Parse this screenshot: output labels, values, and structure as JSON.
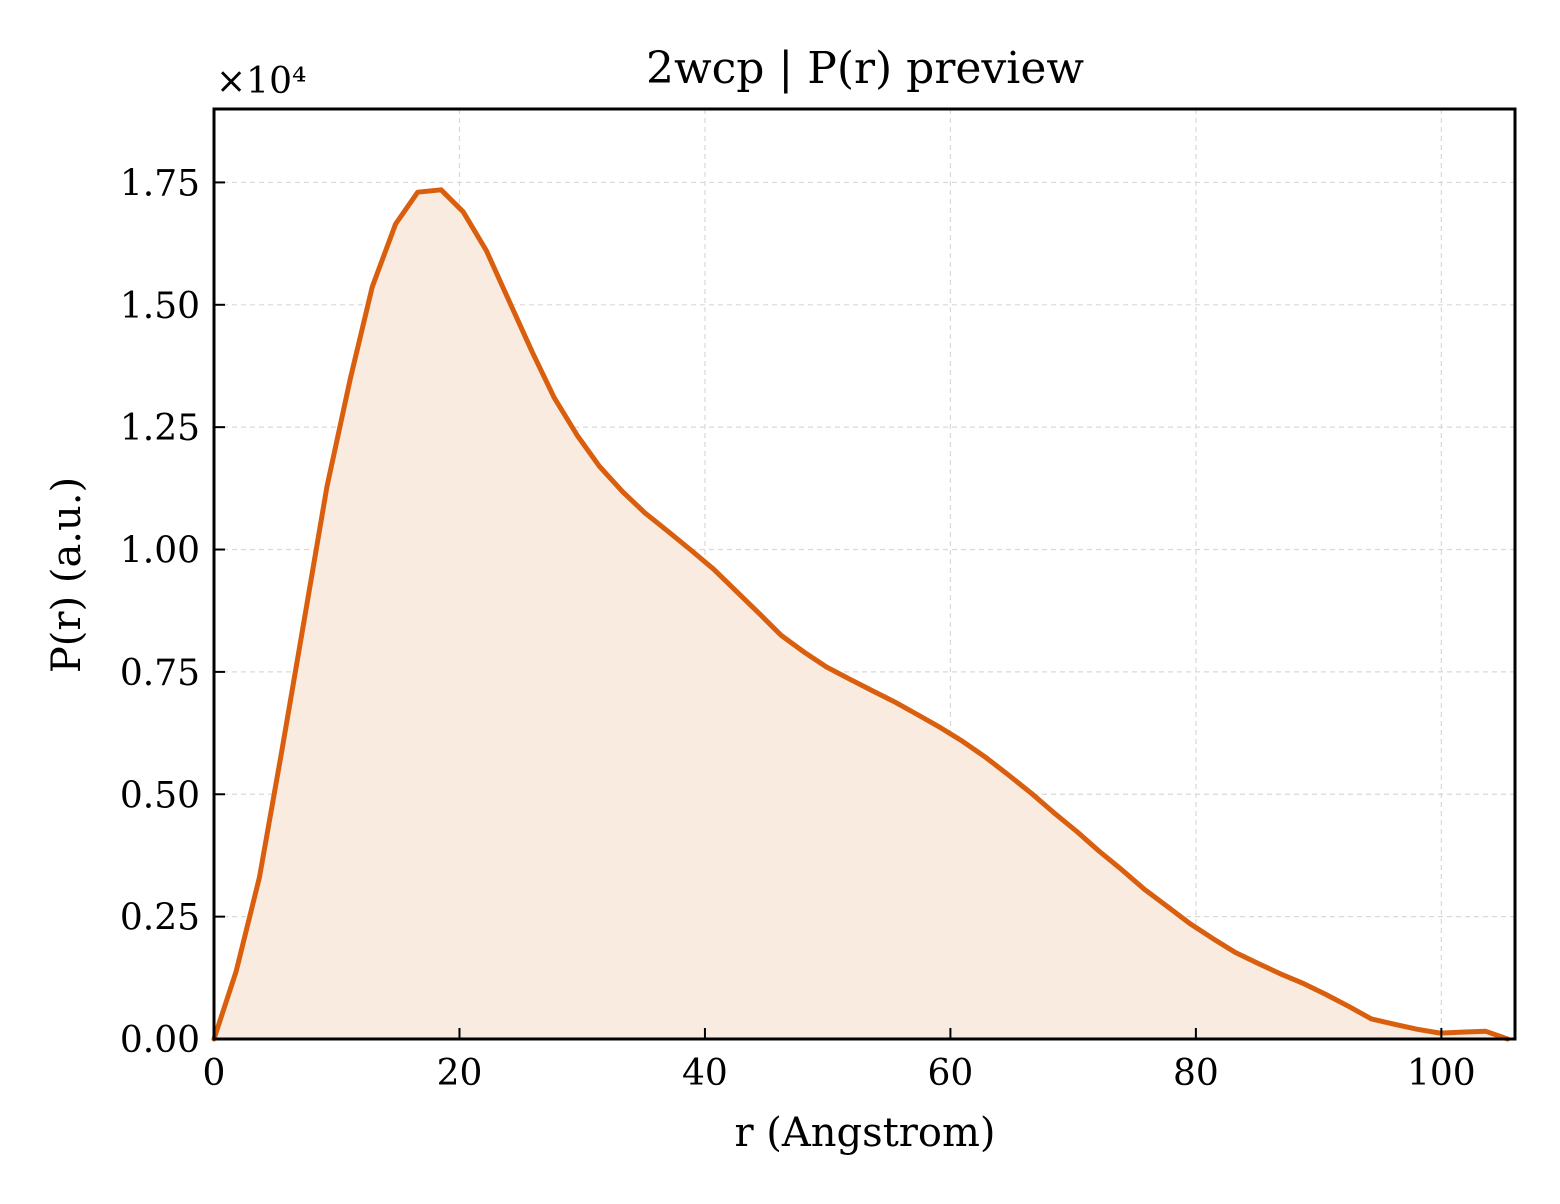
{
  "chart_data": {
    "type": "area",
    "title": "2wcp | P(r) preview",
    "xlabel": "r (Angstrom)",
    "ylabel": "P(r) (a.u.)",
    "y_multiplier_label": "×10⁴",
    "y_multiplier": 10000,
    "xlim": [
      0,
      106
    ],
    "ylim": [
      0,
      1.9
    ],
    "x_ticks": [
      0,
      20,
      40,
      60,
      80,
      100
    ],
    "x_tick_labels": [
      "0",
      "20",
      "40",
      "60",
      "80",
      "100"
    ],
    "y_ticks": [
      0,
      0.25,
      0.5,
      0.75,
      1.0,
      1.25,
      1.5,
      1.75
    ],
    "y_tick_labels": [
      "0.00",
      "0.25",
      "0.50",
      "0.75",
      "1.00",
      "1.25",
      "1.50",
      "1.75"
    ],
    "grid": true,
    "legend": "none",
    "line_color": "#d95f0e",
    "fill_color": "#f9ebe0",
    "series": [
      {
        "x": [
          0,
          1.8,
          3.7,
          5.5,
          7.4,
          9.2,
          11.1,
          12.9,
          14.8,
          16.6,
          18.5,
          20.3,
          22.2,
          24.0,
          25.9,
          27.7,
          29.6,
          31.4,
          33.3,
          35.1,
          37.0,
          38.8,
          40.7,
          42.5,
          44.4,
          46.2,
          48.1,
          49.9,
          51.8,
          53.6,
          55.5,
          57.3,
          59.2,
          61.0,
          62.9,
          64.7,
          66.6,
          68.4,
          70.3,
          72.1,
          74.0,
          75.8,
          77.7,
          79.5,
          81.4,
          83.2,
          85.1,
          86.9,
          88.8,
          90.6,
          92.5,
          94.3,
          96.2,
          98.0,
          99.9,
          101.7,
          103.6,
          105.4
        ],
        "y": [
          0.0,
          0.138,
          0.33,
          0.585,
          0.863,
          1.128,
          1.348,
          1.537,
          1.665,
          1.73,
          1.735,
          1.69,
          1.61,
          1.51,
          1.405,
          1.311,
          1.233,
          1.17,
          1.118,
          1.075,
          1.037,
          1.0,
          0.96,
          0.916,
          0.87,
          0.825,
          0.79,
          0.76,
          0.735,
          0.712,
          0.688,
          0.663,
          0.636,
          0.608,
          0.575,
          0.54,
          0.502,
          0.463,
          0.424,
          0.384,
          0.345,
          0.306,
          0.27,
          0.236,
          0.205,
          0.177,
          0.154,
          0.133,
          0.113,
          0.091,
          0.066,
          0.041,
          0.03,
          0.02,
          0.012,
          0.014,
          0.016,
          0.0
        ]
      }
    ]
  }
}
